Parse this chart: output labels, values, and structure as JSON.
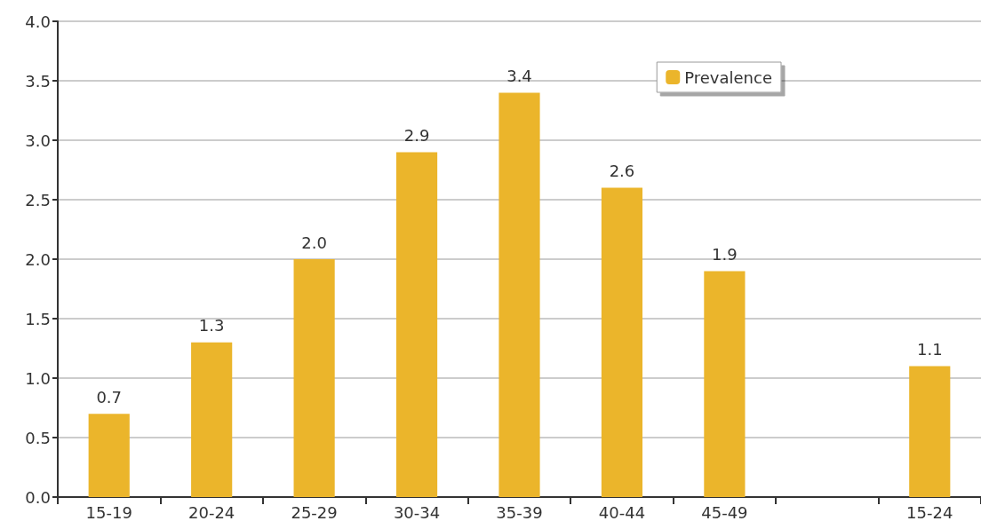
{
  "chart_data": {
    "type": "bar",
    "categories": [
      "15-19",
      "20-24",
      "25-29",
      "30-34",
      "35-39",
      "40-44",
      "45-49",
      null,
      "15-24"
    ],
    "series": [
      {
        "name": "Prevalence",
        "color": "#ebb52b",
        "values": [
          0.7,
          1.3,
          2.0,
          2.9,
          3.4,
          2.6,
          1.9,
          null,
          1.1
        ],
        "value_labels": [
          "0.7",
          "1.3",
          "2.0",
          "2.9",
          "3.4",
          "2.6",
          "1.9",
          null,
          "1.1"
        ]
      }
    ],
    "ylim": [
      0,
      4
    ],
    "yticks": [
      {
        "value": 0,
        "label": "0.0"
      },
      {
        "value": 0.5,
        "label": "0.5"
      },
      {
        "value": 1,
        "label": "1.0"
      },
      {
        "value": 1.5,
        "label": "1.5"
      },
      {
        "value": 2,
        "label": "2.0"
      },
      {
        "value": 2.5,
        "label": "2.5"
      },
      {
        "value": 3,
        "label": "3.0"
      },
      {
        "value": 3.5,
        "label": "3.5"
      },
      {
        "value": 4,
        "label": "4.0"
      }
    ],
    "grid": "y",
    "legend": "top right"
  }
}
